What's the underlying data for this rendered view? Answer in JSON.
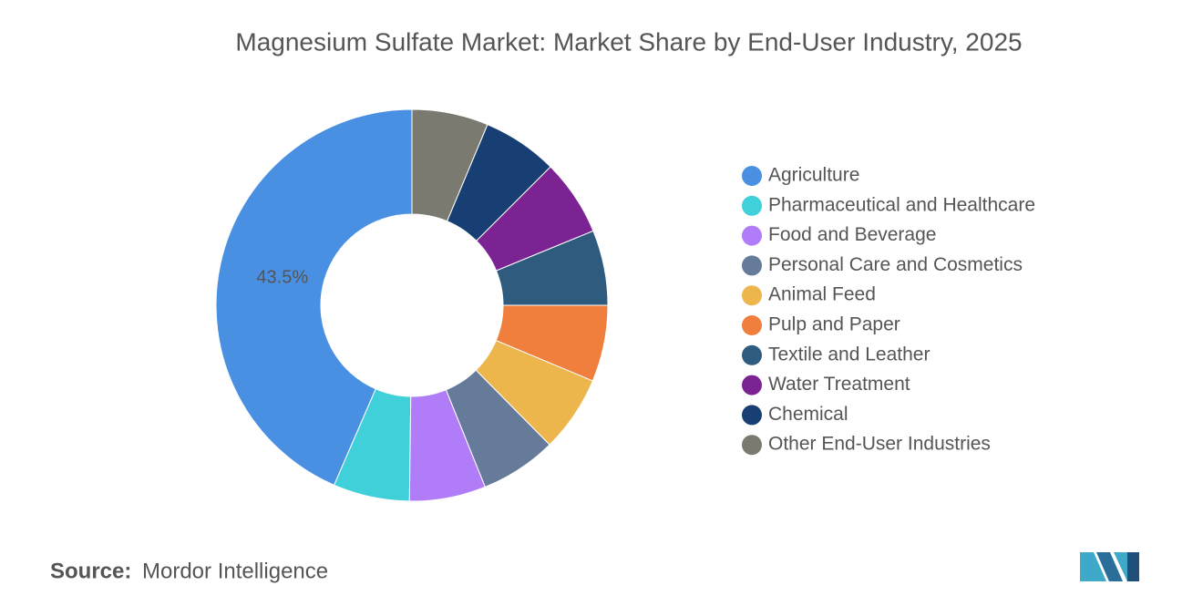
{
  "chart_data": {
    "type": "donut",
    "title": "Magnesium Sulfate Market: Market Share by End-User Industry, 2025",
    "categories": [
      "Agriculture",
      "Pharmaceutical and Healthcare",
      "Food and Beverage",
      "Personal Care and Cosmetics",
      "Animal Feed",
      "Pulp and Paper",
      "Textile and Leather",
      "Water Treatment",
      "Chemical",
      "Other End-User Industries"
    ],
    "values": [
      43.5,
      6.3,
      6.3,
      6.3,
      6.3,
      6.3,
      6.2,
      6.3,
      6.2,
      6.3
    ],
    "value_labels": [
      "43.5%",
      null,
      null,
      null,
      null,
      null,
      null,
      null,
      null,
      null
    ],
    "colors": [
      "#4a90e2",
      "#3fd0d9",
      "#b07cf7",
      "#667a9a",
      "#ecb64c",
      "#f07f3e",
      "#2e5b7e",
      "#7b2393",
      "#173f73",
      "#7a7a70"
    ],
    "legend": "right",
    "source_label": "Source:",
    "source": "Mordor Intelligence"
  }
}
